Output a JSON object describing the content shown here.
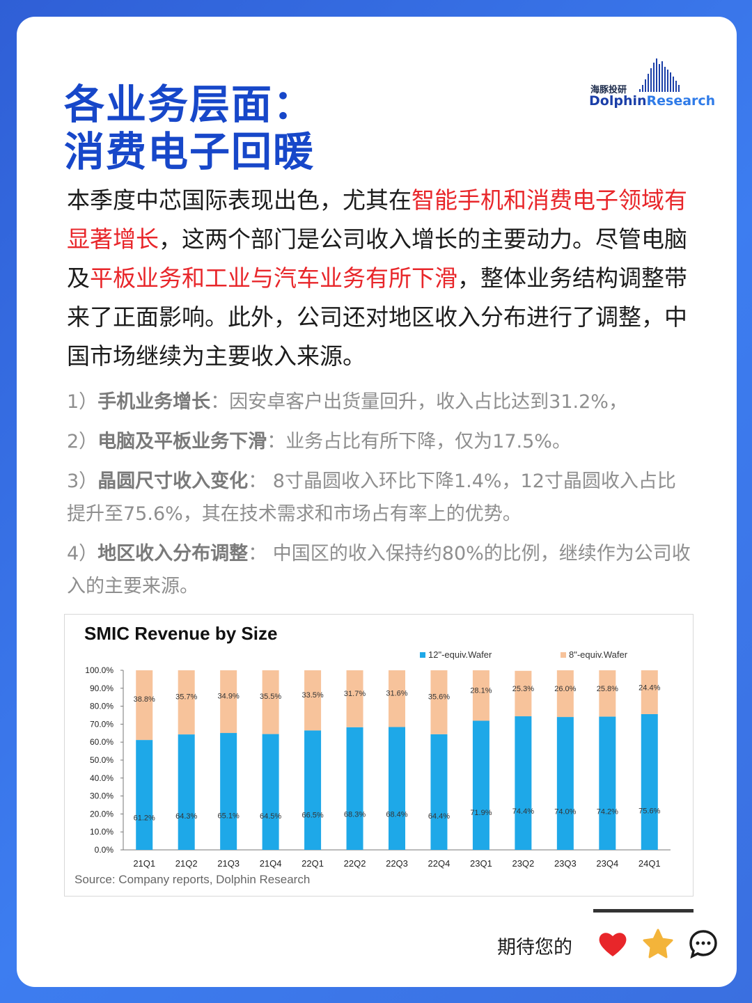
{
  "title": {
    "line1": "各业务层面：",
    "line2": "消费电子回暖"
  },
  "logo": {
    "cn": "海豚投研",
    "en_a": "Dolphin",
    "en_b": "Research"
  },
  "intro": [
    {
      "t": "本季度中芯国际表现出色，尤其在",
      "red": false
    },
    {
      "t": "智能手机和消费电子领域有显著增长",
      "red": true
    },
    {
      "t": "，这两个部门是公司收入增长的主要动力。尽管电脑及",
      "red": false
    },
    {
      "t": "平板业务和工业与汽车业务有所下滑",
      "red": true
    },
    {
      "t": "，整体业务结构调整带来了正面影响。此外，公司还对地区收入分布进行了调整，中国市场继续为主要收入来源。",
      "red": false
    }
  ],
  "points": [
    {
      "num": "1）",
      "head": "手机业务增长",
      "body": "：因安卓客户出货量回升，收入占比达到31.2%，"
    },
    {
      "num": "2）",
      "head": "电脑及平板业务下滑",
      "body": "：业务占比有所下降，仅为17.5%。"
    },
    {
      "num": "3）",
      "head": "晶圆尺寸收入变化",
      "body": "： 8寸晶圆收入环比下降1.4%，12寸晶圆收入占比提升至75.6%，其在技术需求和市场占有率上的优势。"
    },
    {
      "num": "4）",
      "head": "地区收入分布调整",
      "body": "： 中国区的收入保持约80%的比例，继续作为公司收入的主要来源。"
    }
  ],
  "chart_data": {
    "type": "bar",
    "stacked": true,
    "percent": true,
    "title": "SMIC Revenue by Size",
    "source": "Source: Company reports, Dolphin Research",
    "categories": [
      "21Q1",
      "21Q2",
      "21Q3",
      "21Q4",
      "22Q1",
      "22Q2",
      "22Q3",
      "22Q4",
      "23Q1",
      "23Q2",
      "23Q3",
      "23Q4",
      "24Q1"
    ],
    "series": [
      {
        "name": "12\"-equiv.Wafer",
        "color": "#1ea8e8",
        "values": [
          61.2,
          64.3,
          65.1,
          64.5,
          66.5,
          68.3,
          68.4,
          64.4,
          71.9,
          74.4,
          74.0,
          74.2,
          75.6
        ]
      },
      {
        "name": "8\"-equiv.Wafer",
        "color": "#f7c39b",
        "values": [
          38.8,
          35.7,
          34.9,
          35.5,
          33.5,
          31.7,
          31.6,
          35.6,
          28.1,
          25.3,
          26.0,
          25.8,
          24.4
        ]
      }
    ],
    "yticks": [
      "0.0%",
      "10.0%",
      "20.0%",
      "30.0%",
      "40.0%",
      "50.0%",
      "60.0%",
      "70.0%",
      "80.0%",
      "90.0%",
      "100.0%"
    ],
    "ylim": [
      0,
      100
    ],
    "legend": "top-right",
    "grid": false
  },
  "footer": {
    "text": "期待您的",
    "icons": [
      "heart-icon",
      "star-icon",
      "comment-icon"
    ],
    "heart_color": "#e8262a",
    "star_color": "#f3b43a"
  }
}
